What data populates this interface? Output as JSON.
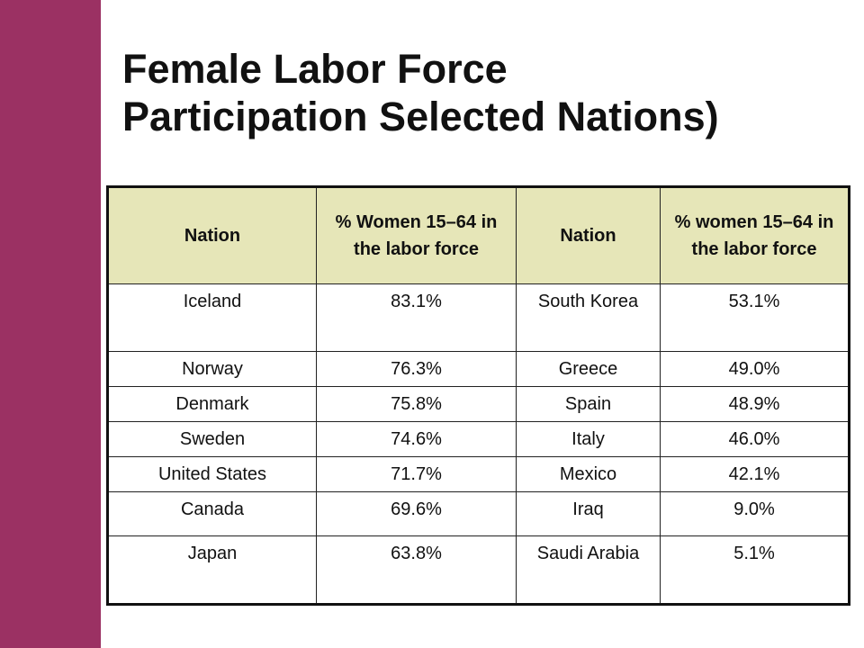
{
  "slide": {
    "accent_color": "#9b3163",
    "header_fill_color": "#e6e6b8",
    "title_lines": [
      "Female Labor Force",
      "Participation Selected Nations)"
    ]
  },
  "table": {
    "headers": [
      "Nation",
      "% Women 15–64 in the labor force",
      "Nation",
      "% women 15–64 in the labor force"
    ],
    "rows": [
      [
        "Iceland",
        "83.1%",
        "South Korea",
        "53.1%"
      ],
      [
        "Norway",
        "76.3%",
        "Greece",
        "49.0%"
      ],
      [
        "Denmark",
        "75.8%",
        "Spain",
        "48.9%"
      ],
      [
        "Sweden",
        "74.6%",
        "Italy",
        "46.0%"
      ],
      [
        "United States",
        "71.7%",
        "Mexico",
        "42.1%"
      ],
      [
        "Canada",
        "69.6%",
        "Iraq",
        "9.0%"
      ],
      [
        "Japan",
        "63.8%",
        "Saudi Arabia",
        "5.1%"
      ]
    ]
  }
}
